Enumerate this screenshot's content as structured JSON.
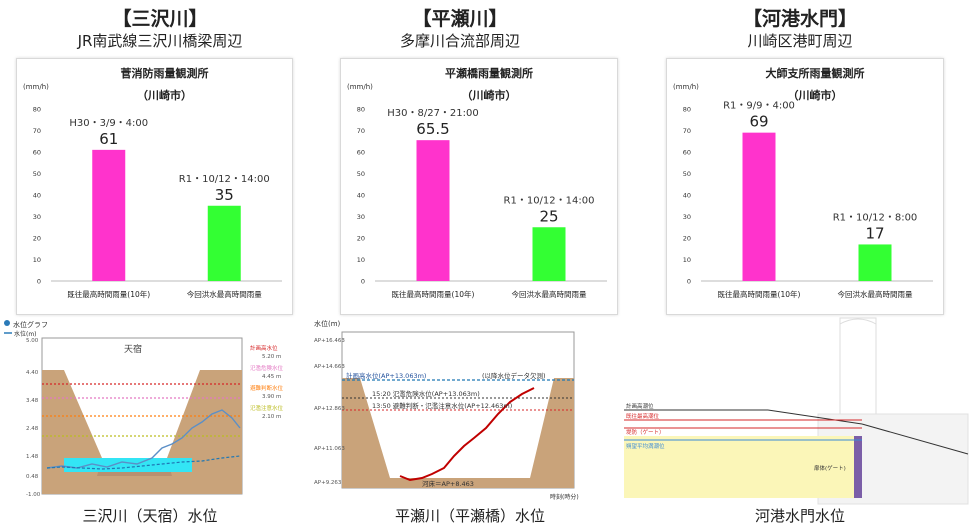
{
  "headers": [
    {
      "title": "【三沢川】",
      "subtitle": "JR南武線三沢川橋梁周辺"
    },
    {
      "title": "【平瀬川】",
      "subtitle": "多摩川合流部周辺"
    },
    {
      "title": "【河港水門】",
      "subtitle": "川崎区港町周辺"
    }
  ],
  "chart_data": [
    {
      "type": "bar",
      "title": "菅消防雨量観測所",
      "subtitle": "（川崎市）",
      "ylabel": "(mm/h)",
      "ylim": [
        0,
        80
      ],
      "yticks": [
        0,
        10,
        20,
        30,
        40,
        50,
        60,
        70,
        80
      ],
      "categories": [
        "既往最高時間雨量(10年)",
        "今回洪水最高時間雨量"
      ],
      "values": [
        61,
        35
      ],
      "value_labels": [
        "61",
        "35"
      ],
      "annotations": [
        "H30・3/9・4:00",
        "R1・10/12・14:00"
      ],
      "colors": [
        "#ff33cc",
        "#33ff33"
      ]
    },
    {
      "type": "bar",
      "title": "平瀬橋雨量観測所",
      "subtitle": "（川崎市）",
      "ylabel": "(mm/h)",
      "ylim": [
        0,
        80
      ],
      "yticks": [
        0,
        10,
        20,
        30,
        40,
        50,
        60,
        70,
        80
      ],
      "categories": [
        "既往最高時間雨量(10年)",
        "今回洪水最高時間雨量"
      ],
      "values": [
        65.5,
        25
      ],
      "value_labels": [
        "65.5",
        "25"
      ],
      "annotations": [
        "H30・8/27・21:00",
        "R1・10/12・14:00"
      ],
      "colors": [
        "#ff33cc",
        "#33ff33"
      ]
    },
    {
      "type": "bar",
      "title": "大師支所雨量観測所",
      "subtitle": "（川崎市）",
      "ylabel": "(mm/h)",
      "ylim": [
        0,
        80
      ],
      "yticks": [
        0,
        10,
        20,
        30,
        40,
        50,
        60,
        70,
        80
      ],
      "categories": [
        "既往最高時間雨量(10年)",
        "今回洪水最高時間雨量"
      ],
      "values": [
        69,
        17
      ],
      "value_labels": [
        "69",
        "17"
      ],
      "annotations": [
        "R1・9/9・4:00",
        "R1・10/12・8:00"
      ],
      "colors": [
        "#ff33cc",
        "#33ff33"
      ]
    }
  ],
  "water_panels": {
    "misawa": {
      "caption": "三沢川（天宿）水位",
      "title_label": "天宿",
      "legend_title": "水位グラフ",
      "legend_item": "水位(m)",
      "y_ticks": [
        "5.00",
        "4.40",
        "3.48",
        "2.48",
        "1.48",
        "0.48",
        "-1.00"
      ],
      "right_notes": [
        "計画高水位",
        "5.20 m",
        "氾濫危険水位",
        "4.45 m",
        "避難判断水位",
        "3.90 m",
        "氾濫注意水位",
        "2.10 m"
      ]
    },
    "hirase": {
      "caption": "平瀬川（平瀬橋）水位",
      "y_label": "水位(m)",
      "x_label": "時刻(時分)",
      "y_ticks": [
        "AP+16.463",
        "AP+14.663",
        "AP+12.863",
        "AP+11.063",
        "AP+9.263"
      ],
      "labels": [
        "計画高水位(AP+13.063m)",
        "(以降水位データ欠測)",
        "15:20 氾濫危険水位(AP+13.063m)",
        "13:50 避難判断・氾濫注意水位(AP+12.463m)",
        "河床＝AP+8.463"
      ]
    },
    "kako": {
      "caption": "河港水門水位",
      "labels": [
        "計画高潮位",
        "既往最高潮位",
        "堤防（ゲート）",
        "朔望平均満潮位",
        "扉体(ゲート)"
      ]
    }
  }
}
